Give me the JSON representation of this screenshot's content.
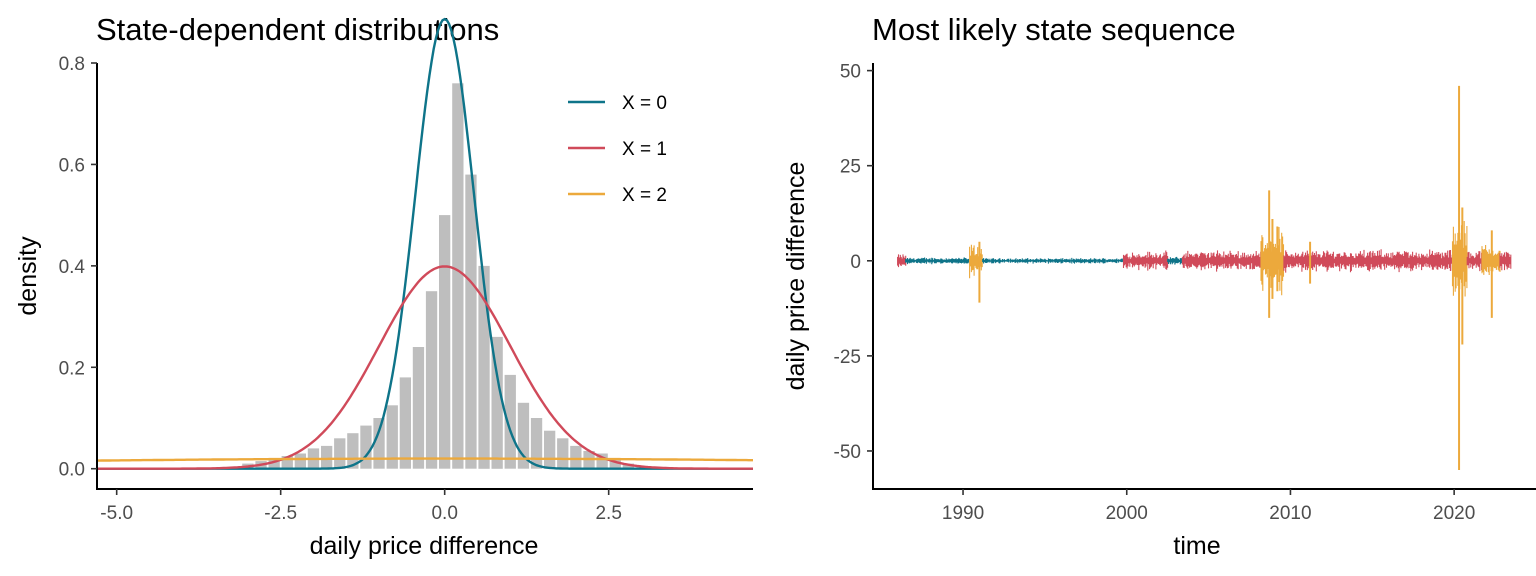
{
  "chart_data": [
    {
      "type": "histogram+line",
      "title": "State-dependent distributions",
      "xlabel": "daily price difference",
      "ylabel": "density",
      "xlim": [
        -5.3,
        4.7
      ],
      "ylim": [
        -0.04,
        0.8
      ],
      "xticks": [
        -5.0,
        -2.5,
        0.0,
        2.5
      ],
      "xtick_labels": [
        "-5.0",
        "-2.5",
        "0.0",
        "2.5"
      ],
      "yticks": [
        0.0,
        0.2,
        0.4,
        0.6,
        0.8
      ],
      "ytick_labels": [
        "0.0",
        "0.2",
        "0.4",
        "0.6",
        "0.8"
      ],
      "grid": false,
      "legend_position": "top-right",
      "histogram": {
        "color": "#bebebe",
        "bin_width": 0.2,
        "bins": [
          {
            "center": -3.0,
            "density": 0.01
          },
          {
            "center": -2.8,
            "density": 0.015
          },
          {
            "center": -2.6,
            "density": 0.02
          },
          {
            "center": -2.4,
            "density": 0.025
          },
          {
            "center": -2.2,
            "density": 0.03
          },
          {
            "center": -2.0,
            "density": 0.04
          },
          {
            "center": -1.8,
            "density": 0.045
          },
          {
            "center": -1.6,
            "density": 0.06
          },
          {
            "center": -1.4,
            "density": 0.07
          },
          {
            "center": -1.2,
            "density": 0.085
          },
          {
            "center": -1.0,
            "density": 0.1
          },
          {
            "center": -0.8,
            "density": 0.125
          },
          {
            "center": -0.6,
            "density": 0.18
          },
          {
            "center": -0.4,
            "density": 0.24
          },
          {
            "center": -0.2,
            "density": 0.35
          },
          {
            "center": 0.0,
            "density": 0.5
          },
          {
            "center": 0.2,
            "density": 0.76
          },
          {
            "center": 0.4,
            "density": 0.58
          },
          {
            "center": 0.6,
            "density": 0.4
          },
          {
            "center": 0.8,
            "density": 0.26
          },
          {
            "center": 1.0,
            "density": 0.185
          },
          {
            "center": 1.2,
            "density": 0.13
          },
          {
            "center": 1.4,
            "density": 0.1
          },
          {
            "center": 1.6,
            "density": 0.075
          },
          {
            "center": 1.8,
            "density": 0.06
          },
          {
            "center": 2.0,
            "density": 0.045
          },
          {
            "center": 2.2,
            "density": 0.035
          },
          {
            "center": 2.4,
            "density": 0.03
          },
          {
            "center": 2.6,
            "density": 0.02
          },
          {
            "center": 2.8,
            "density": 0.01
          }
        ]
      },
      "series": [
        {
          "name": "X = 0",
          "color": "#0e7489",
          "distribution": "normal",
          "mean": 0.0,
          "sd": 0.45
        },
        {
          "name": "X = 1",
          "color": "#d04a5a",
          "distribution": "normal",
          "mean": 0.0,
          "sd": 1.0
        },
        {
          "name": "X = 2",
          "color": "#eca93c",
          "distribution": "normal",
          "mean": 0.0,
          "sd": 8.0,
          "weight": 0.4
        }
      ]
    },
    {
      "type": "line",
      "title": "Most likely state sequence",
      "xlabel": "time",
      "ylabel": "daily price difference",
      "xlim": [
        1984.5,
        2025.0
      ],
      "ylim": [
        -60,
        52
      ],
      "xticks": [
        1990,
        2000,
        2010,
        2020
      ],
      "xtick_labels": [
        "1990",
        "2000",
        "2010",
        "2020"
      ],
      "yticks": [
        -50,
        -25,
        0,
        25,
        50
      ],
      "ytick_labels": [
        "-50",
        "-25",
        "0",
        "25",
        "50"
      ],
      "grid": false,
      "state_colors": {
        "X = 0": "#0e7489",
        "X = 1": "#d04a5a",
        "X = 2": "#eca93c"
      },
      "segments": [
        {
          "state": "X = 1",
          "start": 1986.0,
          "end": 1986.5,
          "amplitude": 2.0
        },
        {
          "state": "X = 0",
          "start": 1986.5,
          "end": 1990.4,
          "amplitude": 1.0
        },
        {
          "state": "X = 2",
          "start": 1990.4,
          "end": 1991.2,
          "amplitude": 5.0
        },
        {
          "state": "X = 0",
          "start": 1991.2,
          "end": 1999.8,
          "amplitude": 0.8
        },
        {
          "state": "X = 1",
          "start": 1999.8,
          "end": 2002.5,
          "amplitude": 2.8
        },
        {
          "state": "X = 0",
          "start": 2002.5,
          "end": 2003.4,
          "amplitude": 1.2
        },
        {
          "state": "X = 1",
          "start": 2003.4,
          "end": 2008.2,
          "amplitude": 3.0
        },
        {
          "state": "X = 2",
          "start": 2008.2,
          "end": 2009.6,
          "amplitude": 10.0
        },
        {
          "state": "X = 1",
          "start": 2009.6,
          "end": 2019.9,
          "amplitude": 3.2
        },
        {
          "state": "X = 2",
          "start": 2019.9,
          "end": 2020.8,
          "amplitude": 12.0
        },
        {
          "state": "X = 1",
          "start": 2020.8,
          "end": 2021.7,
          "amplitude": 3.2
        },
        {
          "state": "X = 2",
          "start": 2021.7,
          "end": 2022.8,
          "amplitude": 5.0
        },
        {
          "state": "X = 1",
          "start": 2022.8,
          "end": 2023.5,
          "amplitude": 3.0
        }
      ],
      "spikes": [
        {
          "time": 1991.0,
          "min": -11,
          "max": 5,
          "state": "X = 2"
        },
        {
          "time": 2008.7,
          "min": -15,
          "max": 18.5,
          "state": "X = 2"
        },
        {
          "time": 2008.9,
          "min": -10,
          "max": 11,
          "state": "X = 2"
        },
        {
          "time": 2009.2,
          "min": -8,
          "max": 9,
          "state": "X = 2"
        },
        {
          "time": 2011.2,
          "min": -6,
          "max": 5,
          "state": "X = 2"
        },
        {
          "time": 2020.3,
          "min": -55,
          "max": 46,
          "state": "X = 2"
        },
        {
          "time": 2020.5,
          "min": -22,
          "max": 14,
          "state": "X = 2"
        },
        {
          "time": 2022.3,
          "min": -15,
          "max": 8,
          "state": "X = 2"
        }
      ]
    }
  ]
}
